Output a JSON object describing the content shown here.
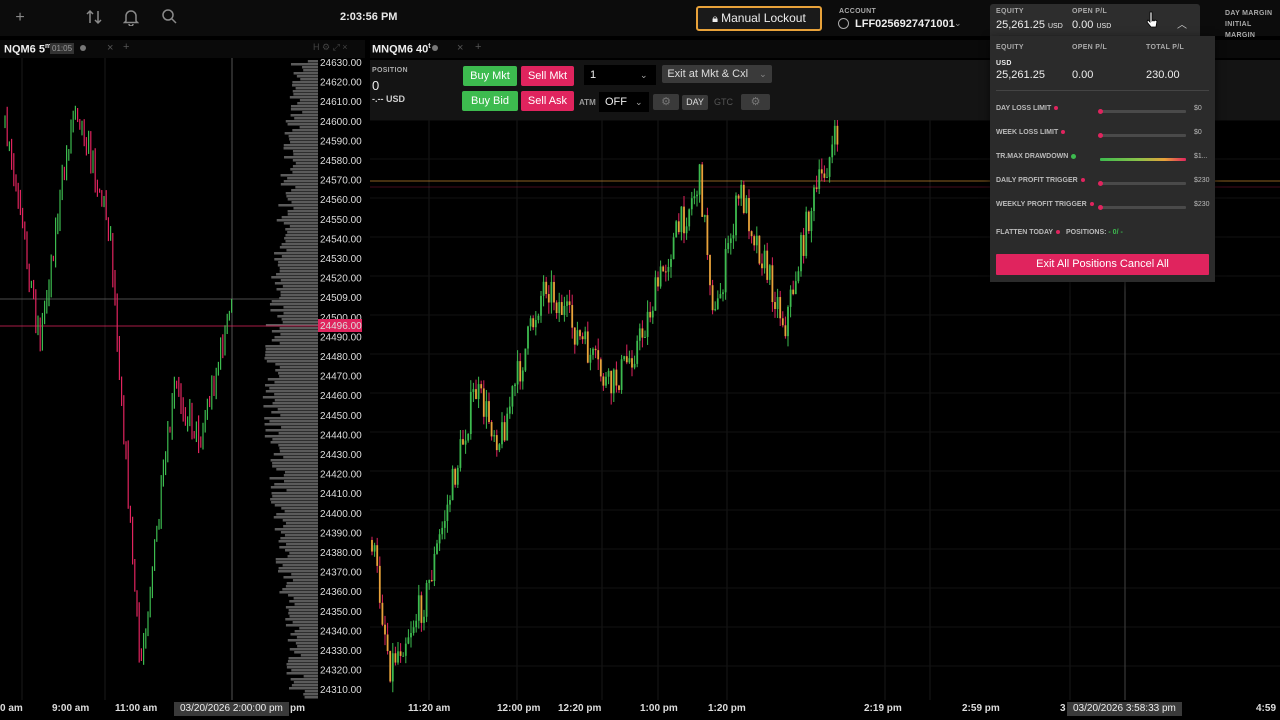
{
  "topbar": {
    "clock": "2:03:56 PM",
    "lockout_label": "Manual Lockout",
    "account_label": "ACCOUNT",
    "account_value": "LFF0256927471001",
    "equity_label": "EQUITY",
    "equity_value": "25,261.25",
    "equity_unit": "USD",
    "open_pl_label": "OPEN P/L",
    "open_pl_value": "0.00",
    "open_pl_unit": "USD",
    "day_margin_label": "DAY MARGIN",
    "initial_margin_label": "INITIAL MARGIN"
  },
  "left_chart": {
    "tab_title": "NQM6 5",
    "tab_superscript": "m",
    "tab_timer": "01:05",
    "price_labels": [
      "24630.00",
      "24620.00",
      "24610.00",
      "24600.00",
      "24590.00",
      "24580.00",
      "24570.00",
      "24560.00",
      "24550.00",
      "24540.00",
      "24530.00",
      "24520.00",
      "24509.00",
      "24500.00",
      "24490.00",
      "24480.00",
      "24470.00",
      "24460.00",
      "24450.00",
      "24440.00",
      "24430.00",
      "24420.00",
      "24410.00",
      "24400.00",
      "24390.00",
      "24380.00",
      "24370.00",
      "24360.00",
      "24350.00",
      "24340.00",
      "24330.00",
      "24320.00",
      "24310.00"
    ],
    "current_price": "24496.00",
    "time_labels": [
      "0 am",
      "9:00 am",
      "11:00 am",
      "pm"
    ],
    "crosshair_time": "03/20/2026 2:00:00 pm"
  },
  "right_chart": {
    "tab_title": "MNQM6 40",
    "tab_superscript": "t",
    "position_label": "POSITION",
    "position_value": "0",
    "position_pl": "-.-- USD",
    "buy_mkt": "Buy Mkt",
    "sell_mkt": "Sell Mkt",
    "buy_bid": "Buy Bid",
    "sell_ask": "Sell Ask",
    "qty": "1",
    "exit_label": "Exit at Mkt & Cxl",
    "atm_label": "ATM",
    "atm_value": "OFF",
    "tif_day": "DAY",
    "tif_gtc": "GTC",
    "time_labels": [
      "11:20 am",
      "12:00 pm",
      "12:20 pm",
      "1:00 pm",
      "1:20 pm",
      "2:19 pm",
      "2:59 pm",
      "3",
      "4:59"
    ],
    "crosshair_time": "03/20/2026 3:58:33 pm"
  },
  "risk_panel": {
    "equity_label": "EQUITY",
    "open_pl_label": "OPEN P/L",
    "total_pl_label": "TOTAL P/L",
    "currency": "USD",
    "equity": "25,261.25",
    "open_pl": "0.00",
    "total_pl": "230.00",
    "rows": [
      {
        "label": "DAY LOSS LIMIT",
        "value": "$0",
        "fill": 0
      },
      {
        "label": "WEEK LOSS LIMIT",
        "value": "$0",
        "fill": 0
      },
      {
        "label": "TR.MAX DRAWDOWN",
        "value": "$1...",
        "fill": 1
      },
      {
        "label": "DAILY PROFIT TRIGGER",
        "value": "$230",
        "fill": 0
      },
      {
        "label": "WEEKLY PROFIT TRIGGER",
        "value": "$230",
        "fill": 0
      }
    ],
    "flatten_label": "FLATTEN TODAY",
    "positions_label": "POSITIONS:",
    "positions_value": "- 0/ -",
    "exit_all_label": "Exit All Positions Cancel All"
  },
  "colors": {
    "up": "#3dbb4f",
    "down": "#e0245e",
    "accent_orange": "#e8a23a",
    "panel": "#2b2b2b"
  }
}
